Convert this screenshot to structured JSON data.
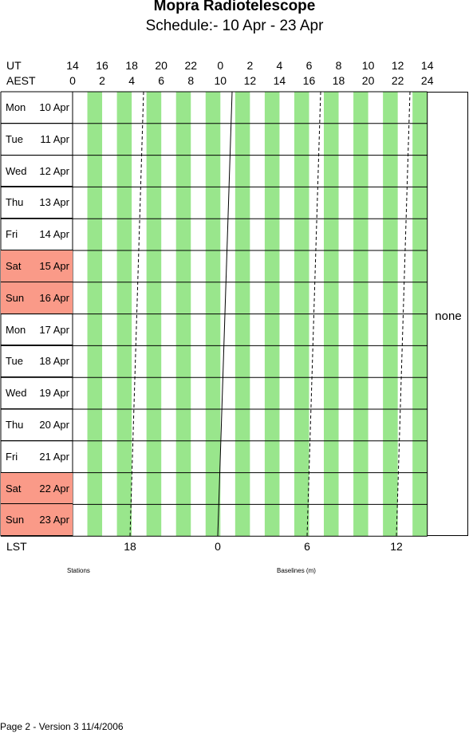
{
  "title": "Mopra Radiotelescope",
  "subtitle": "Schedule:- 10 Apr - 23 Apr",
  "ut_label": "UT",
  "aest_label": "AEST",
  "ut_ticks": [
    "14",
    "16",
    "18",
    "20",
    "22",
    "0",
    "2",
    "4",
    "6",
    "8",
    "10",
    "12",
    "14"
  ],
  "aest_ticks": [
    "0",
    "2",
    "4",
    "6",
    "8",
    "10",
    "12",
    "14",
    "16",
    "18",
    "20",
    "22",
    "24"
  ],
  "days": [
    {
      "name": "Mon",
      "date": "10 Apr",
      "weekend": false
    },
    {
      "name": "Tue",
      "date": "11 Apr",
      "weekend": false
    },
    {
      "name": "Wed",
      "date": "12 Apr",
      "weekend": false
    },
    {
      "name": "Thu",
      "date": "13 Apr",
      "weekend": false
    },
    {
      "name": "Fri",
      "date": "14 Apr",
      "weekend": false
    },
    {
      "name": "Sat",
      "date": "15 Apr",
      "weekend": true
    },
    {
      "name": "Sun",
      "date": "16 Apr",
      "weekend": true
    },
    {
      "name": "Mon",
      "date": "17 Apr",
      "weekend": false
    },
    {
      "name": "Tue",
      "date": "18 Apr",
      "weekend": false
    },
    {
      "name": "Wed",
      "date": "19 Apr",
      "weekend": false
    },
    {
      "name": "Thu",
      "date": "20 Apr",
      "weekend": false
    },
    {
      "name": "Fri",
      "date": "21 Apr",
      "weekend": false
    },
    {
      "name": "Sat",
      "date": "22 Apr",
      "weekend": true
    },
    {
      "name": "Sun",
      "date": "23 Apr",
      "weekend": true
    }
  ],
  "lst_label": "LST",
  "lst_ticks": [
    "18",
    "0",
    "6",
    "12"
  ],
  "none_label": "none",
  "stations_label": "Stations",
  "baselines_label": "Baselines (m)",
  "footer": "Page 2 - Version 3  11/4/2006",
  "colors": {
    "stripe": "#99e68c",
    "weekend": "#fa9a88",
    "line": "#000000"
  }
}
